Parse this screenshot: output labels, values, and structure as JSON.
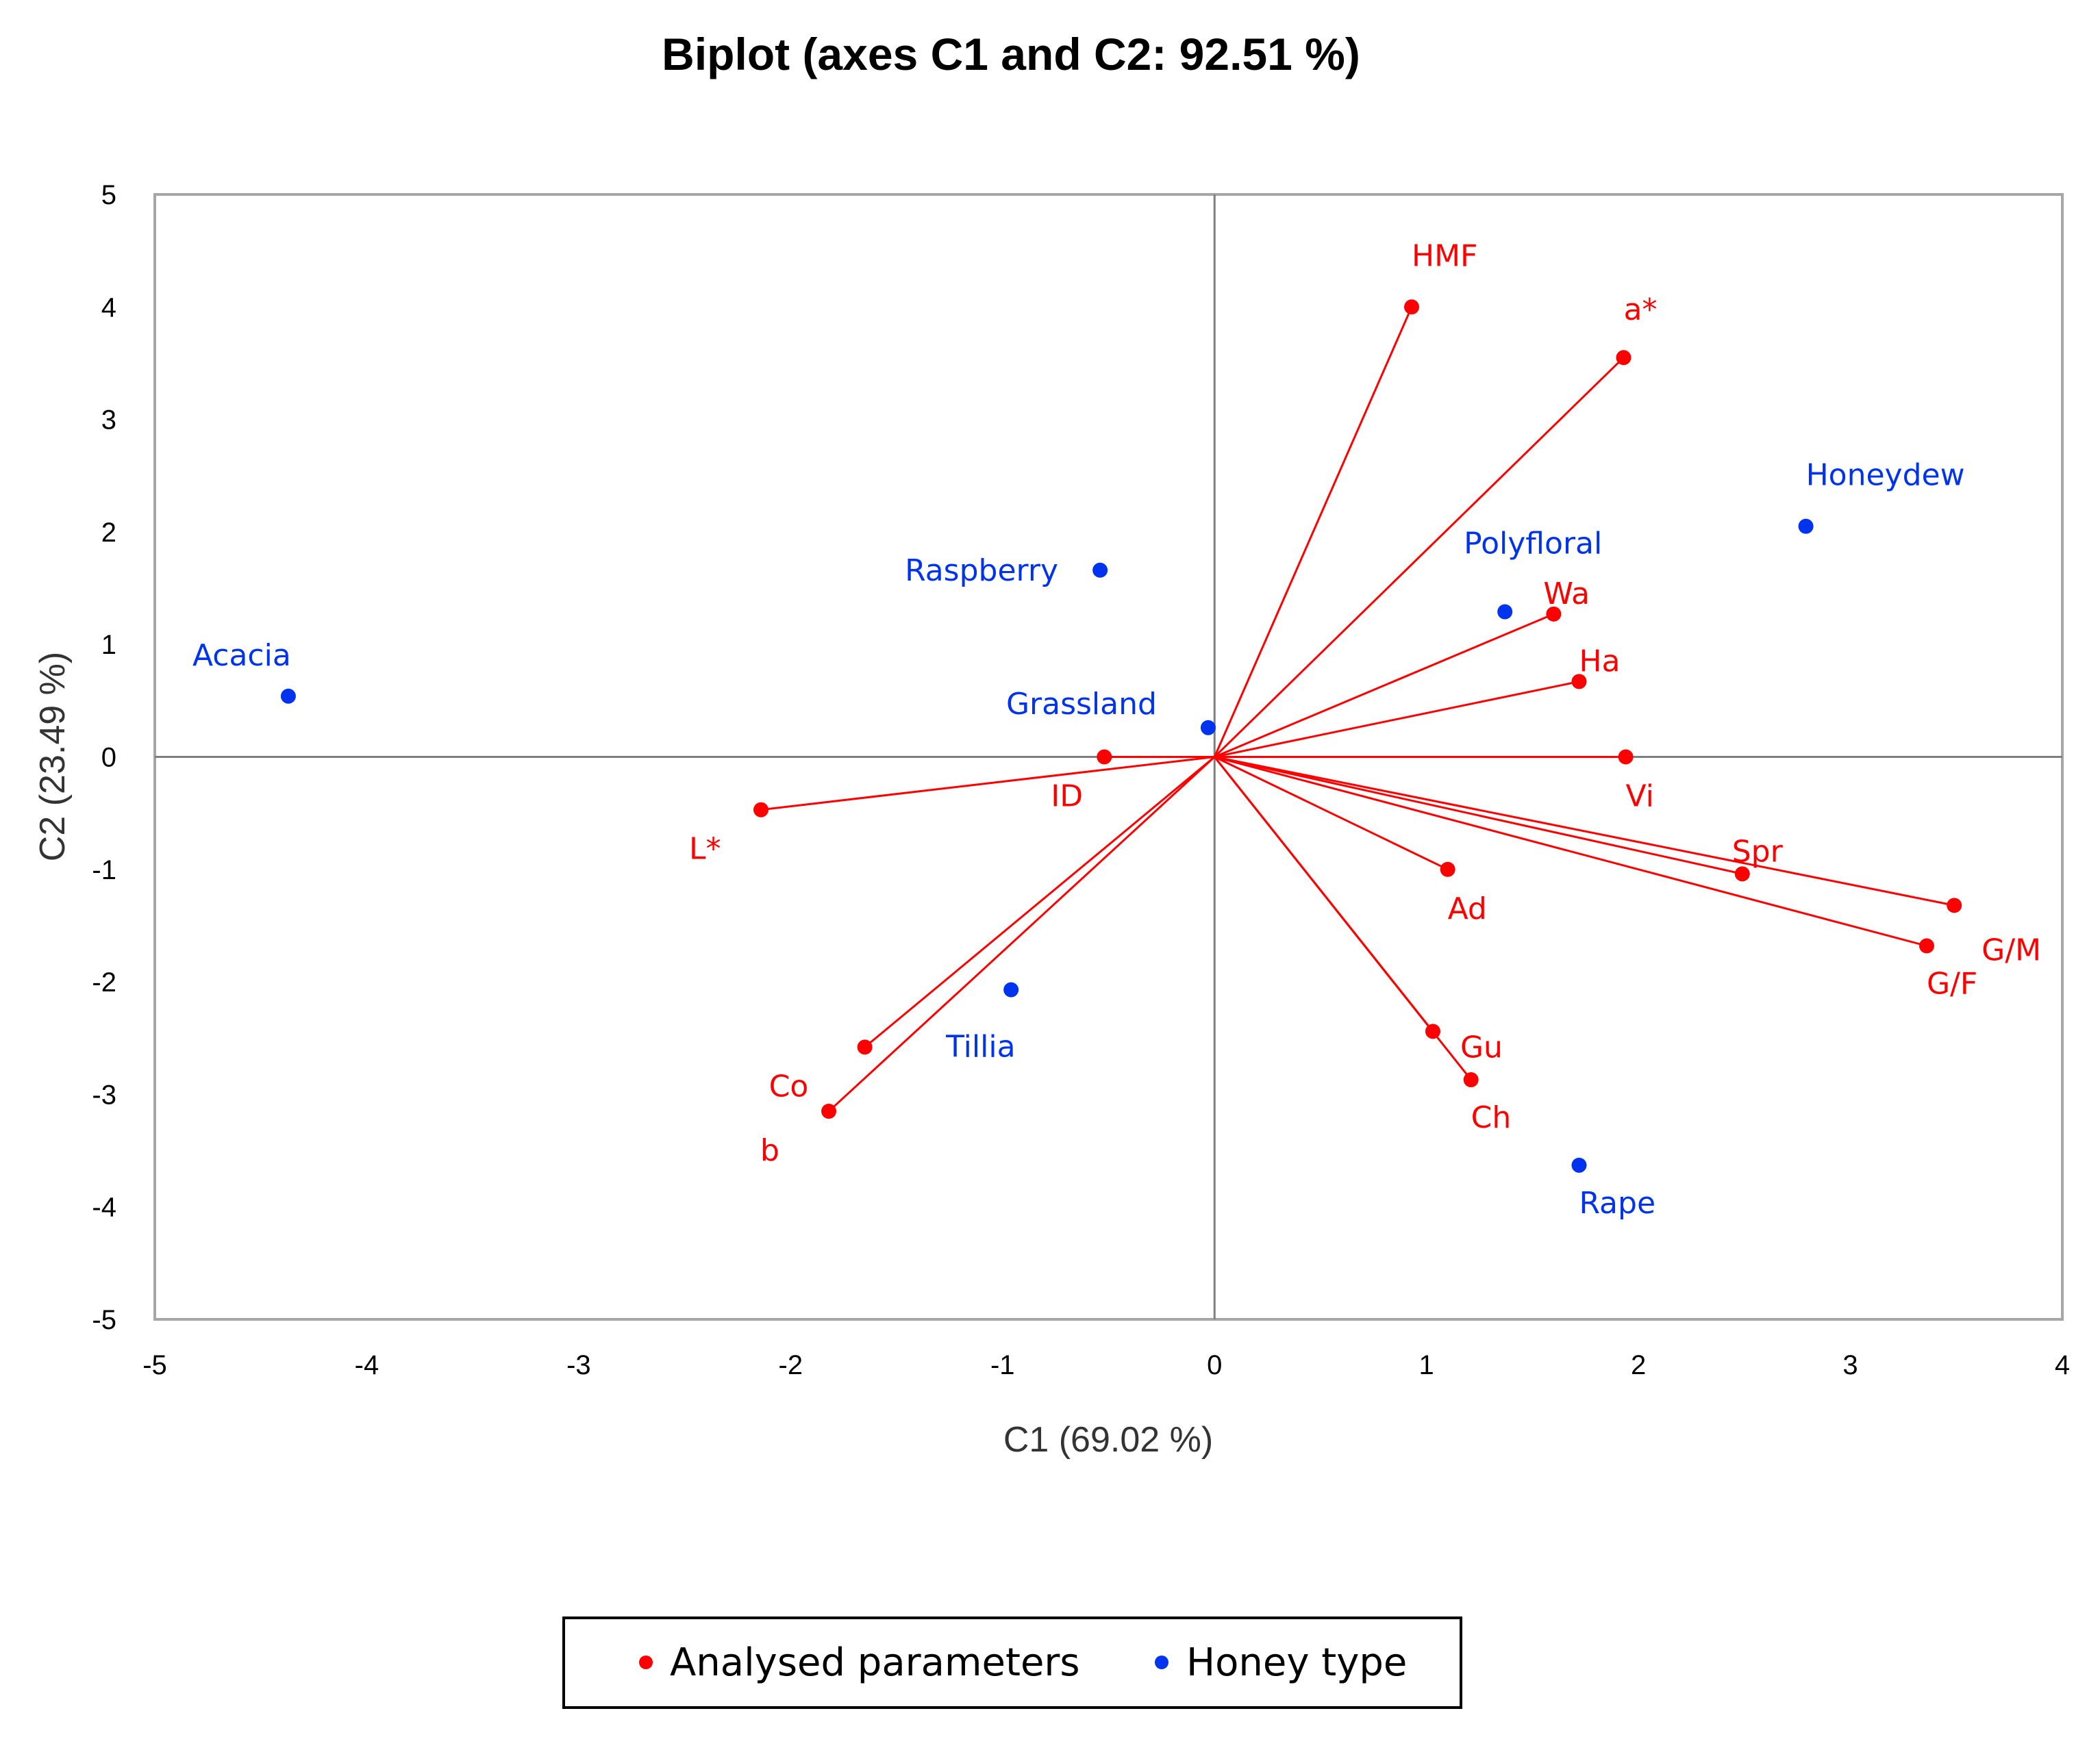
{
  "chart_data": {
    "type": "scatter",
    "subtype": "biplot",
    "title": "Biplot (axes C1 and C2: 92.51 %)",
    "xlabel": "C1 (69.02 %)",
    "ylabel": "C2 (23.49 %)",
    "xlim": [
      -5,
      4
    ],
    "ylim": [
      -5,
      5
    ],
    "xticks": [
      "-5",
      "-4",
      "-3",
      "-2",
      "-1",
      "0",
      "1",
      "2",
      "3",
      "4"
    ],
    "yticks": [
      "5",
      "4",
      "3",
      "2",
      "1",
      "0",
      "-1",
      "-2",
      "-3",
      "-4",
      "-5"
    ],
    "colors": {
      "parameters": "#ff0000",
      "honey": "#0033ee",
      "axis": "#7f7f7f"
    },
    "legend": {
      "position": "bottom",
      "entries": [
        {
          "label": "Analysed parameters",
          "color": "#ff0000"
        },
        {
          "label": "Honey type",
          "color": "#0033ee"
        }
      ]
    },
    "series": [
      {
        "name": "Analysed parameters",
        "vectors": true,
        "points": [
          {
            "label": "HMF",
            "x": 0.93,
            "y": 4.0
          },
          {
            "label": "a*",
            "x": 1.93,
            "y": 3.55
          },
          {
            "label": "Wa",
            "x": 1.6,
            "y": 1.27
          },
          {
            "label": "Ha",
            "x": 1.72,
            "y": 0.67
          },
          {
            "label": "Vi",
            "x": 1.94,
            "y": 0.0
          },
          {
            "label": "ID",
            "x": -0.52,
            "y": 0.0
          },
          {
            "label": "L*",
            "x": -2.14,
            "y": -0.47
          },
          {
            "label": "Spr",
            "x": 2.49,
            "y": -1.04
          },
          {
            "label": "Ad",
            "x": 1.1,
            "y": -1.0
          },
          {
            "label": "G/M",
            "x": 3.49,
            "y": -1.32
          },
          {
            "label": "G/F",
            "x": 3.36,
            "y": -1.68
          },
          {
            "label": "Gu",
            "x": 1.03,
            "y": -2.44
          },
          {
            "label": "Ch",
            "x": 1.21,
            "y": -2.87
          },
          {
            "label": "Co",
            "x": -1.65,
            "y": -2.58
          },
          {
            "label": "b",
            "x": -1.82,
            "y": -3.15
          }
        ]
      },
      {
        "name": "Honey type",
        "vectors": false,
        "points": [
          {
            "label": "Acacia",
            "x": -4.37,
            "y": 0.54
          },
          {
            "label": "Raspberry",
            "x": -0.54,
            "y": 1.66
          },
          {
            "label": "Grassland",
            "x": -0.03,
            "y": 0.26
          },
          {
            "label": "Polyfloral",
            "x": 1.37,
            "y": 1.29
          },
          {
            "label": "Honeydew",
            "x": 2.79,
            "y": 2.05
          },
          {
            "label": "Tillia",
            "x": -0.96,
            "y": -2.07
          },
          {
            "label": "Rape",
            "x": 1.72,
            "y": -3.63
          }
        ]
      }
    ]
  }
}
